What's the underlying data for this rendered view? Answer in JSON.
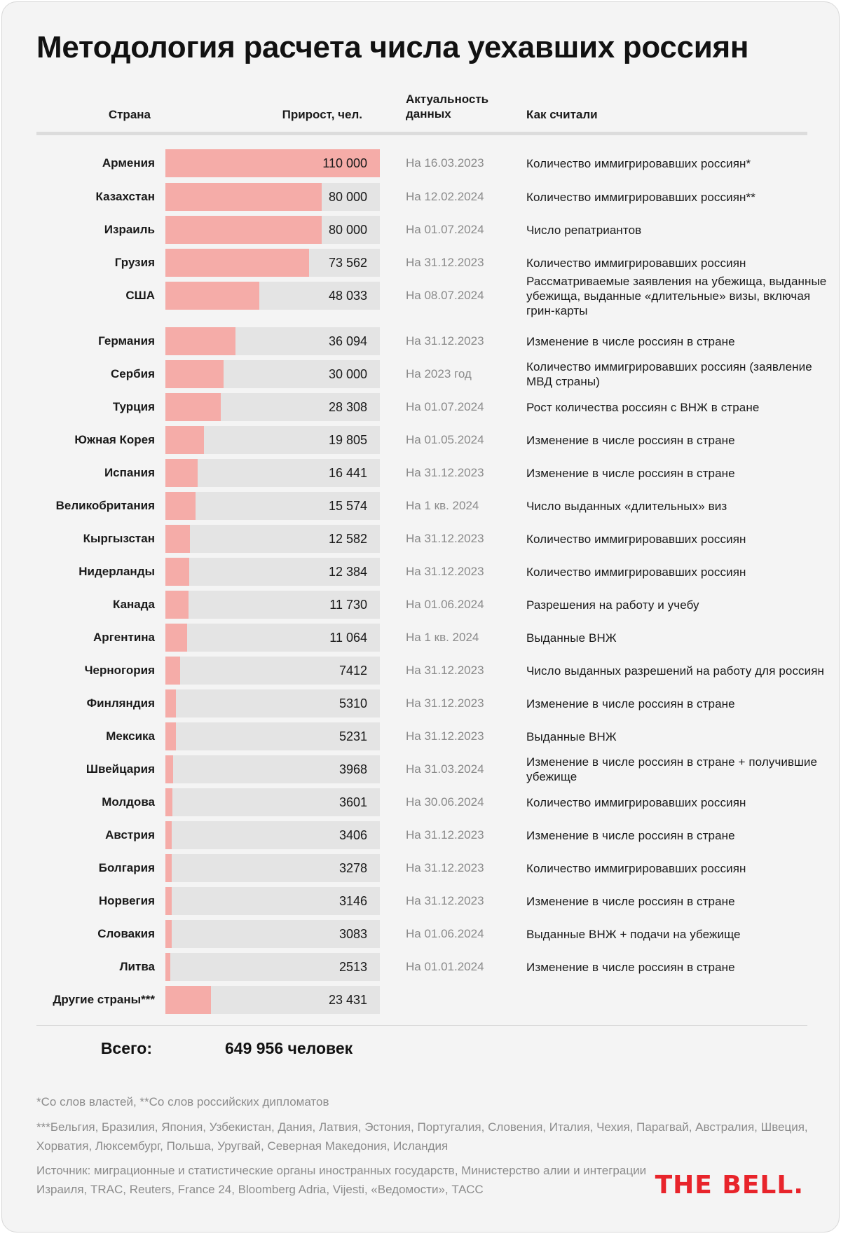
{
  "title": "Методология расчета числа уехавших россиян",
  "headers": {
    "country": "Страна",
    "growth": "Прирост, чел.",
    "date": "Актуальность данных",
    "how": "Как считали"
  },
  "colors": {
    "bar": "#f5aca8",
    "track": "#e4e4e4",
    "logo": "#e8242b"
  },
  "chart_data": {
    "type": "bar",
    "orientation": "horizontal",
    "xlim": [
      0,
      110000
    ],
    "categories": [
      "Армения",
      "Казахстан",
      "Израиль",
      "Грузия",
      "США",
      "Германия",
      "Сербия",
      "Турция",
      "Южная Корея",
      "Испания",
      "Великобритания",
      "Кыргызстан",
      "Нидерланды",
      "Канада",
      "Аргентина",
      "Черногория",
      "Финляндия",
      "Мексика",
      "Швейцария",
      "Молдова",
      "Австрия",
      "Болгария",
      "Норвегия",
      "Словакия",
      "Литва",
      "Другие страны***"
    ],
    "values": [
      110000,
      80000,
      80000,
      73562,
      48033,
      36094,
      30000,
      28308,
      19805,
      16441,
      15574,
      12582,
      12384,
      11730,
      11064,
      7412,
      5310,
      5231,
      3968,
      3601,
      3406,
      3278,
      3146,
      3083,
      2513,
      23431
    ],
    "value_labels": [
      "110 000",
      "80 000",
      "80 000",
      "73 562",
      "48 033",
      "36 094",
      "30 000",
      "28 308",
      "19 805",
      "16 441",
      "15 574",
      "12 582",
      "12 384",
      "11 730",
      "11 064",
      "7412",
      "5310",
      "5231",
      "3968",
      "3601",
      "3406",
      "3278",
      "3146",
      "3083",
      "2513",
      "23 431"
    ],
    "dates": [
      "На 16.03.2023",
      "На 12.02.2024",
      "На 01.07.2024",
      "На 31.12.2023",
      "На 08.07.2024",
      "На 31.12.2023",
      "На 2023 год",
      "На 01.07.2024",
      "На 01.05.2024",
      "На 31.12.2023",
      "На 1 кв. 2024",
      "На 31.12.2023",
      "На 31.12.2023",
      "На 01.06.2024",
      "На 1 кв. 2024",
      "На 31.12.2023",
      "На 31.12.2023",
      "На 31.12.2023",
      "На 31.03.2024",
      "На 30.06.2024",
      "На 31.12.2023",
      "На 31.12.2023",
      "На 31.12.2023",
      "На 01.06.2024",
      "На 01.01.2024",
      ""
    ],
    "methods": [
      "Количество иммигрировавших россиян*",
      "Количество иммигрировавших россиян**",
      "Число репатриантов",
      "Количество иммигрировавших россиян",
      "Рассматриваемые заявления на убежища, выданные убежища, выданные «длительные» визы, включая грин-карты",
      "Изменение в числе россиян в стране",
      "Количество иммигрировавших россиян (заявление МВД страны)",
      "Рост количества россиян с ВНЖ в стране",
      "Изменение в числе россиян в стране",
      "Изменение в числе россиян в стране",
      "Число выданных «длительных» виз",
      "Количество иммигрировавших россиян",
      "Количество иммигрировавших россиян",
      "Разрешения на работу и учебу",
      "Выданные ВНЖ",
      "Число выданных разрешений на работу для россиян",
      "Изменение в числе россиян в стране",
      "Выданные ВНЖ",
      "Изменение в числе россиян в стране + получившие убежище",
      "Количество иммигрировавших россиян",
      "Изменение в числе россиян в стране",
      "Количество иммигрировавших россиян",
      "Изменение в числе россиян в стране",
      "Выданные ВНЖ + подачи на убежище",
      "Изменение в числе россиян в стране",
      ""
    ]
  },
  "total": {
    "label": "Всего:",
    "value": "649 956 человек"
  },
  "footnotes": {
    "note1": "*Со слов властей, **Со слов российских дипломатов",
    "note2": "***Бельгия, Бразилия, Япония, Узбекистан, Дания, Латвия, Эстония, Португалия, Словения, Италия, Чехия, Парагвай, Австралия, Швеция, Хорватия, Люксембург, Польша, Уругвай, Северная Македония, Исландия",
    "source": "Источник: миграционные и статистические органы иностранных государств, Министерство алии и интеграции Израиля, TRAC, Reuters, France 24, Bloomberg Adria, Vijesti, «Ведомости», ТАСС"
  },
  "logo": "THE BELL."
}
